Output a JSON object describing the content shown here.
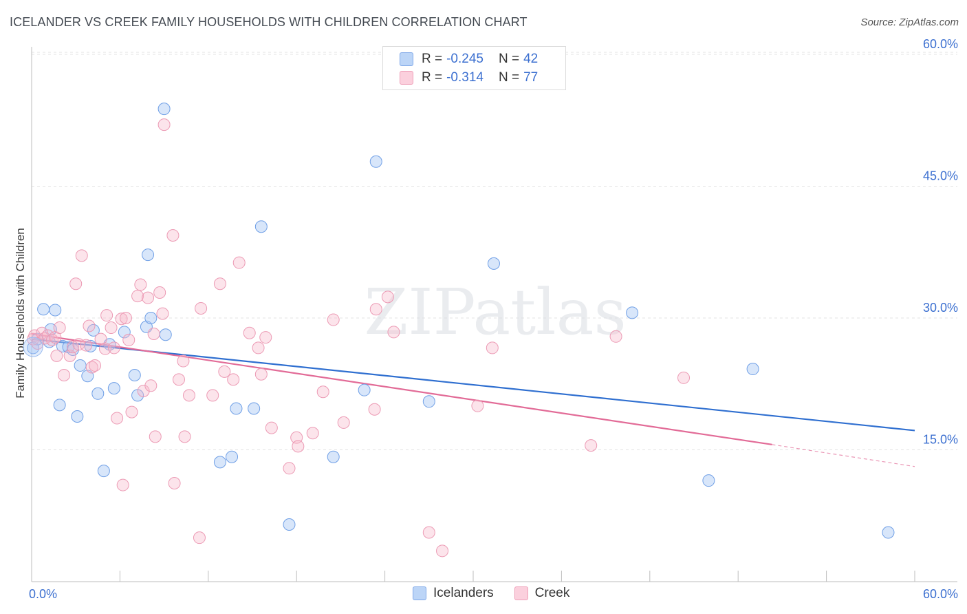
{
  "title": "ICELANDER VS CREEK FAMILY HOUSEHOLDS WITH CHILDREN CORRELATION CHART",
  "source": "Source: ZipAtlas.com",
  "watermark": "ZIPatlas",
  "legend": {
    "r_label": "R =",
    "n_label": "N =",
    "icelanders": {
      "r": "-0.245",
      "n": "42",
      "color": "#a9c8f5"
    },
    "creek": {
      "r": "-0.314",
      "n": "77",
      "color": "#f7b8cb"
    }
  },
  "bottom_legend": {
    "icelanders": "Icelanders",
    "creek": "Creek"
  },
  "chart_data": {
    "type": "scatter",
    "title": "ICELANDER VS CREEK FAMILY HOUSEHOLDS WITH CHILDREN CORRELATION CHART",
    "xlabel": "",
    "ylabel": "Family Households with Children",
    "xlim": [
      0,
      60
    ],
    "ylim": [
      0,
      61.5
    ],
    "x_tick_labels": [
      "0.0%",
      "60.0%"
    ],
    "y_tick_values": [
      15,
      30,
      45,
      60
    ],
    "y_tick_labels": [
      "15.0%",
      "30.0%",
      "45.0%",
      "60.0%"
    ],
    "series": [
      {
        "name": "Icelanders",
        "color": "#6f9fe6",
        "line_color": "#2f6fd0",
        "trend": {
          "x": [
            0,
            60
          ],
          "y": [
            27.6,
            17.2
          ]
        },
        "points": [
          [
            0.1,
            26.6
          ],
          [
            0.4,
            27.6
          ],
          [
            0.8,
            31.0
          ],
          [
            1.2,
            27.3
          ],
          [
            1.3,
            28.7
          ],
          [
            1.6,
            30.9
          ],
          [
            1.9,
            20.1
          ],
          [
            2.1,
            26.8
          ],
          [
            2.5,
            26.7
          ],
          [
            2.8,
            26.4
          ],
          [
            3.1,
            18.8
          ],
          [
            3.3,
            24.6
          ],
          [
            3.8,
            23.4
          ],
          [
            4.0,
            26.8
          ],
          [
            4.2,
            28.6
          ],
          [
            4.5,
            21.4
          ],
          [
            4.9,
            12.6
          ],
          [
            5.3,
            27.0
          ],
          [
            5.6,
            22.0
          ],
          [
            6.3,
            28.4
          ],
          [
            7.0,
            23.5
          ],
          [
            7.2,
            21.2
          ],
          [
            7.8,
            29.0
          ],
          [
            7.9,
            37.2
          ],
          [
            8.1,
            30.0
          ],
          [
            9.0,
            53.8
          ],
          [
            9.1,
            28.1
          ],
          [
            12.8,
            13.6
          ],
          [
            13.6,
            14.2
          ],
          [
            13.9,
            19.7
          ],
          [
            15.1,
            19.7
          ],
          [
            15.6,
            40.4
          ],
          [
            17.5,
            6.5
          ],
          [
            20.5,
            14.2
          ],
          [
            22.6,
            21.8
          ],
          [
            23.4,
            47.8
          ],
          [
            27.0,
            20.5
          ],
          [
            31.4,
            36.2
          ],
          [
            40.8,
            30.6
          ],
          [
            46.0,
            11.5
          ],
          [
            49.0,
            24.2
          ],
          [
            58.2,
            5.6
          ]
        ]
      },
      {
        "name": "Creek",
        "color": "#f09ab5",
        "line_color": "#e26b97",
        "trend": {
          "x": [
            0,
            50.3
          ],
          "y": [
            28.2,
            15.6
          ]
        },
        "trend_dashed": {
          "x": [
            50.3,
            60
          ],
          "y": [
            15.6,
            13.1
          ]
        },
        "points": [
          [
            0.1,
            27.6
          ],
          [
            0.2,
            28.0
          ],
          [
            0.4,
            27.1
          ],
          [
            0.7,
            28.3
          ],
          [
            0.9,
            27.7
          ],
          [
            1.1,
            28.0
          ],
          [
            1.4,
            27.5
          ],
          [
            1.6,
            27.8
          ],
          [
            1.7,
            25.7
          ],
          [
            1.9,
            28.9
          ],
          [
            2.2,
            23.5
          ],
          [
            2.6,
            25.7
          ],
          [
            2.8,
            26.7
          ],
          [
            3.0,
            33.9
          ],
          [
            3.2,
            27.0
          ],
          [
            3.4,
            37.1
          ],
          [
            3.7,
            26.9
          ],
          [
            3.9,
            29.1
          ],
          [
            4.1,
            24.4
          ],
          [
            4.3,
            24.6
          ],
          [
            4.7,
            27.6
          ],
          [
            5.0,
            26.5
          ],
          [
            5.1,
            30.3
          ],
          [
            5.4,
            28.9
          ],
          [
            5.6,
            26.6
          ],
          [
            5.8,
            18.6
          ],
          [
            6.1,
            29.9
          ],
          [
            6.2,
            11.0
          ],
          [
            6.4,
            30.0
          ],
          [
            6.6,
            27.5
          ],
          [
            6.8,
            19.3
          ],
          [
            7.2,
            32.5
          ],
          [
            7.4,
            33.8
          ],
          [
            7.6,
            21.7
          ],
          [
            7.9,
            32.3
          ],
          [
            8.1,
            22.3
          ],
          [
            8.3,
            28.2
          ],
          [
            8.4,
            16.5
          ],
          [
            8.7,
            32.9
          ],
          [
            8.9,
            30.5
          ],
          [
            9.0,
            52.0
          ],
          [
            9.6,
            39.4
          ],
          [
            9.7,
            11.2
          ],
          [
            10.0,
            23.0
          ],
          [
            10.3,
            25.1
          ],
          [
            10.4,
            16.5
          ],
          [
            10.7,
            21.2
          ],
          [
            11.4,
            5.0
          ],
          [
            11.5,
            31.1
          ],
          [
            12.3,
            21.2
          ],
          [
            12.8,
            33.9
          ],
          [
            13.1,
            23.9
          ],
          [
            13.7,
            23.0
          ],
          [
            14.1,
            36.3
          ],
          [
            14.8,
            28.3
          ],
          [
            15.4,
            26.6
          ],
          [
            15.6,
            23.6
          ],
          [
            15.9,
            27.8
          ],
          [
            16.3,
            17.5
          ],
          [
            17.5,
            12.9
          ],
          [
            18.0,
            16.4
          ],
          [
            18.1,
            15.4
          ],
          [
            19.1,
            16.9
          ],
          [
            19.8,
            21.6
          ],
          [
            20.5,
            29.8
          ],
          [
            21.2,
            18.1
          ],
          [
            23.3,
            19.6
          ],
          [
            23.4,
            31.0
          ],
          [
            24.2,
            32.4
          ],
          [
            24.6,
            28.4
          ],
          [
            27.0,
            5.6
          ],
          [
            27.9,
            3.5
          ],
          [
            30.3,
            20.0
          ],
          [
            31.3,
            26.6
          ],
          [
            38.0,
            15.5
          ],
          [
            39.7,
            27.9
          ],
          [
            44.3,
            23.2
          ]
        ]
      }
    ]
  }
}
